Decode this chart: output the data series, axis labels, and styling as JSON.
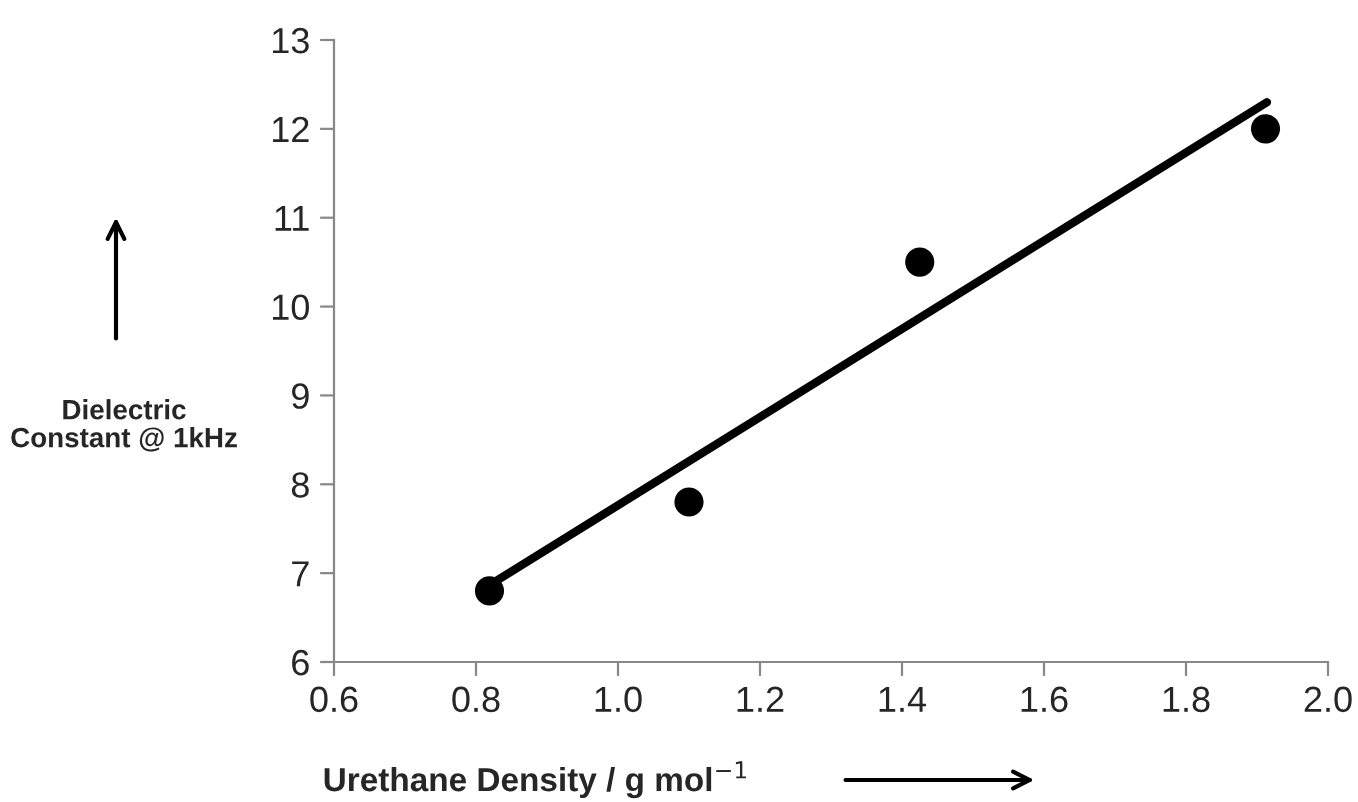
{
  "chart_data": {
    "type": "scatter",
    "xlabel": "Urethane Density / g mol$^{−1}$",
    "ylabel": "Dielectric Constant @ 1kHz",
    "series": [
      {
        "color": "#000000",
        "x": [
          0.819,
          1.1,
          1.425,
          1.912
        ],
        "values": [
          6.8,
          7.8,
          10.5,
          12.0
        ],
        "marker": "circle"
      },
      {
        "type": "line",
        "color": "#000000",
        "x": [
          0.826,
          1.914
        ],
        "values": [
          6.9,
          12.3
        ],
        "line_style": "solid"
      }
    ],
    "xlim": [
      0.6,
      2.0
    ],
    "xticks": [
      {
        "value": 0.6,
        "label": "0.6"
      },
      {
        "value": 0.8,
        "label": "0.8"
      },
      {
        "value": 1.0,
        "label": "1.0"
      },
      {
        "value": 1.2,
        "label": "1.2"
      },
      {
        "value": 1.4,
        "label": "1.4"
      },
      {
        "value": 1.6,
        "label": "1.6"
      },
      {
        "value": 1.8,
        "label": "1.8"
      },
      {
        "value": 2.0,
        "label": "2.0"
      }
    ],
    "ylim": [
      6,
      13
    ],
    "yticks": [
      6,
      7,
      8,
      9,
      10,
      11,
      12,
      13
    ],
    "grid": false,
    "legend": false
  }
}
